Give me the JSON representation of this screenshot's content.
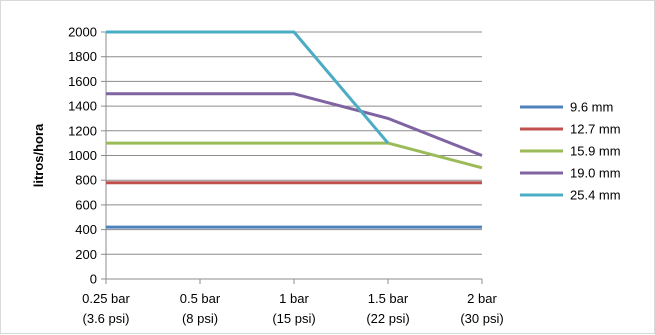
{
  "chart_data": {
    "type": "line",
    "title": "",
    "xlabel": "",
    "ylabel": "litros/hora",
    "ylim": [
      0,
      2000
    ],
    "ytick_step": 200,
    "grid": true,
    "legend_position": "right",
    "categories": [
      [
        "0.25 bar",
        "(3.6 psi)"
      ],
      [
        "0.5 bar",
        "(8 psi)"
      ],
      [
        "1 bar",
        "(15 psi)"
      ],
      [
        "1.5 bar",
        "(22 psi)"
      ],
      [
        "2 bar",
        "(30 psi)"
      ]
    ],
    "series": [
      {
        "name": "9.6 mm",
        "color": "#4f81bd",
        "values": [
          420,
          420,
          420,
          420,
          420
        ]
      },
      {
        "name": "12.7 mm",
        "color": "#c0504d",
        "values": [
          780,
          780,
          780,
          780,
          780
        ]
      },
      {
        "name": "15.9 mm",
        "color": "#9bbb59",
        "values": [
          1100,
          1100,
          1100,
          1100,
          900
        ]
      },
      {
        "name": "19.0 mm",
        "color": "#8064a2",
        "values": [
          1500,
          1500,
          1500,
          1300,
          1000
        ]
      },
      {
        "name": "25.4 mm",
        "color": "#4bacc6",
        "values": [
          2000,
          2000,
          2000,
          1100,
          null
        ]
      }
    ]
  }
}
